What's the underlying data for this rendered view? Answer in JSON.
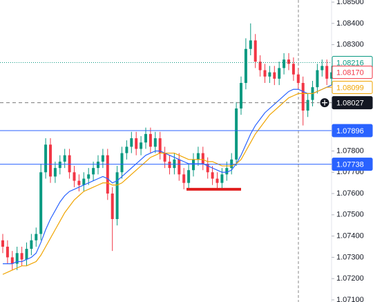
{
  "chart_data": {
    "type": "candlestick",
    "ylim": [
      1.0709,
      1.0851
    ],
    "yticks": [
      {
        "value": 1.085,
        "label": "1.08500"
      },
      {
        "value": 1.084,
        "label": "1.08400"
      },
      {
        "value": 1.083,
        "label": "1.08300"
      },
      {
        "value": 1.078,
        "label": "1.07800"
      },
      {
        "value": 1.077,
        "label": "1.07700"
      },
      {
        "value": 1.076,
        "label": "1.07600"
      },
      {
        "value": 1.075,
        "label": "1.07500"
      },
      {
        "value": 1.074,
        "label": "1.07400"
      },
      {
        "value": 1.073,
        "label": "1.07300"
      },
      {
        "value": 1.072,
        "label": "1.07200"
      },
      {
        "value": 1.071,
        "label": "1.07100"
      }
    ],
    "up_color": "#089981",
    "down_color": "#f23645",
    "open": [
      1.0738,
      1.0735,
      1.073,
      1.0727,
      1.0732,
      1.0729,
      1.0734,
      1.0738,
      1.0741,
      1.077,
      1.0783,
      1.0768,
      1.0772,
      1.0775,
      1.0778,
      1.077,
      1.0766,
      1.0764,
      1.0767,
      1.0769,
      1.0772,
      1.0775,
      1.0778,
      1.076,
      1.0748,
      1.077,
      1.0779,
      1.0782,
      1.0786,
      1.0781,
      1.0784,
      1.0788,
      1.0782,
      1.0786,
      1.0779,
      1.0775,
      1.0772,
      1.0776,
      1.0769,
      1.0765,
      1.0771,
      1.0776,
      1.0779,
      1.0774,
      1.077,
      1.0767,
      1.0765,
      1.0769,
      1.0772,
      1.0776,
      1.08,
      1.0812,
      1.0828,
      1.0832,
      1.0822,
      1.0818,
      1.0815,
      1.0817,
      1.0814,
      1.0819,
      1.0823,
      1.0821,
      1.0816,
      1.0812,
      1.0799,
      1.0804,
      1.081,
      1.0818,
      1.082,
      1.0814
    ],
    "high": [
      1.0741,
      1.0738,
      1.0733,
      1.0735,
      1.0735,
      1.0737,
      1.0741,
      1.0744,
      1.0774,
      1.0786,
      1.0786,
      1.0775,
      1.0778,
      1.0781,
      1.0781,
      1.0773,
      1.0769,
      1.077,
      1.0772,
      1.0775,
      1.0778,
      1.0781,
      1.0781,
      1.0763,
      1.0773,
      1.0782,
      1.0785,
      1.0789,
      1.0789,
      1.0787,
      1.0791,
      1.0791,
      1.0789,
      1.0789,
      1.0782,
      1.0778,
      1.0779,
      1.0779,
      1.0772,
      1.0774,
      1.0779,
      1.0782,
      1.0782,
      1.0777,
      1.0773,
      1.077,
      1.0772,
      1.0775,
      1.0779,
      1.0803,
      1.0815,
      1.0833,
      1.084,
      1.0835,
      1.0825,
      1.0821,
      1.082,
      1.082,
      1.0822,
      1.0826,
      1.0826,
      1.0824,
      1.0819,
      1.0815,
      1.0807,
      1.0813,
      1.0821,
      1.0823,
      1.0823,
      1.082
    ],
    "low": [
      1.0732,
      1.0727,
      1.0724,
      1.0724,
      1.0726,
      1.0726,
      1.0731,
      1.0735,
      1.0738,
      1.0767,
      1.0765,
      1.0765,
      1.0769,
      1.0772,
      1.0767,
      1.0763,
      1.0761,
      1.0761,
      1.0764,
      1.0766,
      1.0769,
      1.0772,
      1.0757,
      1.0733,
      1.0745,
      1.0767,
      1.0776,
      1.0779,
      1.0778,
      1.0778,
      1.0781,
      1.0779,
      1.0779,
      1.0776,
      1.0772,
      1.0769,
      1.0769,
      1.0766,
      1.0762,
      1.0762,
      1.0768,
      1.0773,
      1.0771,
      1.0767,
      1.0764,
      1.0762,
      1.0762,
      1.0766,
      1.0769,
      1.0773,
      1.0797,
      1.0809,
      1.0825,
      1.0819,
      1.0815,
      1.0812,
      1.0812,
      1.0811,
      1.0811,
      1.0816,
      1.0818,
      1.0813,
      1.0809,
      1.0792,
      1.0796,
      1.0801,
      1.0807,
      1.0815,
      1.0811,
      1.0811
    ],
    "close": [
      1.0735,
      1.073,
      1.0727,
      1.0732,
      1.0729,
      1.0734,
      1.0738,
      1.0741,
      1.077,
      1.0783,
      1.0768,
      1.0772,
      1.0775,
      1.0778,
      1.077,
      1.0766,
      1.0764,
      1.0767,
      1.0769,
      1.0772,
      1.0775,
      1.0778,
      1.076,
      1.0748,
      1.077,
      1.0779,
      1.0782,
      1.0786,
      1.0781,
      1.0784,
      1.0788,
      1.0782,
      1.0786,
      1.0779,
      1.0775,
      1.0772,
      1.0776,
      1.0769,
      1.0765,
      1.0771,
      1.0776,
      1.0779,
      1.0774,
      1.077,
      1.0767,
      1.0765,
      1.0769,
      1.0772,
      1.0776,
      1.08,
      1.0812,
      1.0828,
      1.0832,
      1.0822,
      1.0818,
      1.0815,
      1.0817,
      1.0814,
      1.0819,
      1.0823,
      1.0821,
      1.0816,
      1.0812,
      1.0799,
      1.0804,
      1.081,
      1.0818,
      1.082,
      1.0814,
      1.0817
    ],
    "series": [
      {
        "color": "#2962ff",
        "values": [
          1.0727,
          1.0727,
          1.0727,
          1.0728,
          1.0728,
          1.0729,
          1.073,
          1.0732,
          1.0737,
          1.0743,
          1.0748,
          1.0752,
          1.0756,
          1.0759,
          1.0761,
          1.0762,
          1.0763,
          1.0764,
          1.0765,
          1.0766,
          1.0767,
          1.0768,
          1.0767,
          1.0765,
          1.0766,
          1.0768,
          1.077,
          1.0772,
          1.0774,
          1.0776,
          1.0778,
          1.0779,
          1.078,
          1.078,
          1.0779,
          1.0778,
          1.0777,
          1.0776,
          1.0775,
          1.0774,
          1.0774,
          1.0774,
          1.0774,
          1.0773,
          1.0772,
          1.0771,
          1.077,
          1.077,
          1.0771,
          1.0774,
          1.0778,
          1.0783,
          1.0788,
          1.0792,
          1.0795,
          1.0798,
          1.08,
          1.0802,
          1.0804,
          1.0806,
          1.0808,
          1.0809,
          1.0809,
          1.0808,
          1.0807,
          1.0807,
          1.0808,
          1.0809,
          1.081,
          1.0811
        ]
      },
      {
        "color": "#f0a400",
        "values": [
          1.0722,
          1.0723,
          1.0724,
          1.0725,
          1.0726,
          1.0726,
          1.0727,
          1.0728,
          1.0731,
          1.0735,
          1.0739,
          1.0743,
          1.0747,
          1.0751,
          1.0754,
          1.0757,
          1.0759,
          1.0761,
          1.0762,
          1.0763,
          1.0764,
          1.0765,
          1.0765,
          1.0764,
          1.0764,
          1.0765,
          1.0767,
          1.0769,
          1.0771,
          1.0773,
          1.0775,
          1.0777,
          1.0778,
          1.0779,
          1.0779,
          1.0779,
          1.0779,
          1.0778,
          1.0777,
          1.0776,
          1.0776,
          1.0776,
          1.0776,
          1.0775,
          1.0775,
          1.0774,
          1.0773,
          1.0773,
          1.0773,
          1.0774,
          1.0776,
          1.078,
          1.0784,
          1.0788,
          1.0791,
          1.0794,
          1.0797,
          1.0799,
          1.0801,
          1.0803,
          1.0805,
          1.0806,
          1.0807,
          1.0807,
          1.0807,
          1.0807,
          1.0808,
          1.0809,
          1.081,
          1.081
        ]
      }
    ],
    "price_lines": [
      {
        "value": 1.08216,
        "label": "1.08216",
        "color": "#089981",
        "style": "dotted",
        "fill": false
      },
      {
        "value": 1.0817,
        "label": "1.08170",
        "color": "#f23645",
        "style": "none",
        "fill": false
      },
      {
        "value": 1.08099,
        "label": "1.08099",
        "color": "#f0a400",
        "style": "none",
        "fill": false
      },
      {
        "value": 1.08027,
        "label": "1.08027",
        "color": "#131722",
        "style": "dashed",
        "fill": true
      },
      {
        "value": 1.07896,
        "label": "1.07896",
        "color": "#2962ff",
        "style": "solid",
        "fill": true
      },
      {
        "value": 1.07738,
        "label": "1.07738",
        "color": "#2962ff",
        "style": "solid",
        "fill": true
      }
    ],
    "support_line": {
      "value": 1.0762,
      "color": "#e01e1e"
    }
  }
}
